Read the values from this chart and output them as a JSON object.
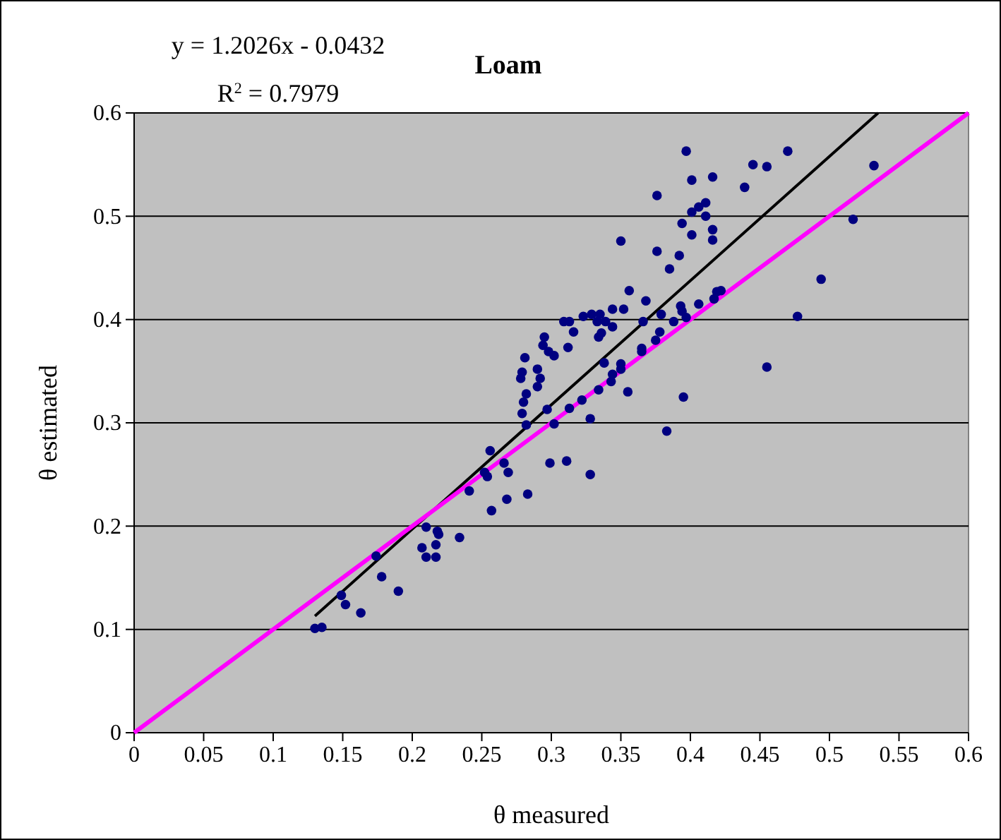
{
  "chart_data": {
    "type": "scatter",
    "title": "Loam",
    "xlabel": "θ  measured",
    "ylabel": "θ  estimated",
    "annotations": [
      "y = 1.2026x - 0.0432",
      "R$^{2}$ = 0.7979"
    ],
    "xlim": [
      0,
      0.6
    ],
    "xticks": [
      0,
      0.05,
      0.1,
      0.15,
      0.2,
      0.25,
      0.3,
      0.35,
      0.4,
      0.45,
      0.5,
      0.55,
      0.6
    ],
    "ylim": [
      0,
      0.6
    ],
    "yticks": [
      0,
      0.1,
      0.2,
      0.3,
      0.4,
      0.5,
      0.6
    ],
    "grid": "y",
    "series": [
      {
        "color": "#000080",
        "marker": "circle",
        "x": [
          0.13,
          0.135,
          0.149,
          0.152,
          0.163,
          0.174,
          0.178,
          0.19,
          0.207,
          0.21,
          0.21,
          0.217,
          0.217,
          0.218,
          0.219,
          0.234,
          0.241,
          0.252,
          0.254,
          0.256,
          0.257,
          0.266,
          0.268,
          0.269,
          0.278,
          0.279,
          0.279,
          0.28,
          0.281,
          0.282,
          0.282,
          0.283,
          0.29,
          0.29,
          0.292,
          0.294,
          0.295,
          0.297,
          0.298,
          0.299,
          0.302,
          0.302,
          0.309,
          0.311,
          0.312,
          0.313,
          0.313,
          0.316,
          0.322,
          0.323,
          0.328,
          0.328,
          0.329,
          0.333,
          0.334,
          0.334,
          0.335,
          0.336,
          0.338,
          0.339,
          0.343,
          0.344,
          0.344,
          0.344,
          0.35,
          0.35,
          0.35,
          0.352,
          0.355,
          0.356,
          0.365,
          0.365,
          0.366,
          0.368,
          0.375,
          0.376,
          0.376,
          0.378,
          0.379,
          0.383,
          0.385,
          0.388,
          0.392,
          0.393,
          0.394,
          0.394,
          0.395,
          0.397,
          0.397,
          0.401,
          0.401,
          0.401,
          0.406,
          0.406,
          0.411,
          0.411,
          0.416,
          0.416,
          0.416,
          0.417,
          0.419,
          0.422,
          0.439,
          0.445,
          0.455,
          0.455,
          0.47,
          0.477,
          0.494,
          0.517,
          0.532
        ],
        "values": [
          0.101,
          0.102,
          0.133,
          0.124,
          0.116,
          0.171,
          0.151,
          0.137,
          0.179,
          0.199,
          0.17,
          0.182,
          0.17,
          0.195,
          0.192,
          0.189,
          0.234,
          0.252,
          0.248,
          0.273,
          0.215,
          0.261,
          0.226,
          0.252,
          0.343,
          0.349,
          0.309,
          0.32,
          0.363,
          0.328,
          0.298,
          0.231,
          0.352,
          0.335,
          0.343,
          0.375,
          0.383,
          0.313,
          0.369,
          0.261,
          0.365,
          0.299,
          0.398,
          0.263,
          0.373,
          0.398,
          0.314,
          0.388,
          0.322,
          0.403,
          0.304,
          0.25,
          0.405,
          0.398,
          0.383,
          0.332,
          0.405,
          0.387,
          0.358,
          0.398,
          0.34,
          0.41,
          0.393,
          0.347,
          0.476,
          0.357,
          0.352,
          0.41,
          0.33,
          0.428,
          0.372,
          0.369,
          0.398,
          0.418,
          0.38,
          0.52,
          0.466,
          0.388,
          0.405,
          0.292,
          0.449,
          0.398,
          0.462,
          0.413,
          0.493,
          0.408,
          0.325,
          0.563,
          0.402,
          0.535,
          0.504,
          0.482,
          0.509,
          0.415,
          0.513,
          0.5,
          0.538,
          0.487,
          0.477,
          0.42,
          0.427,
          0.428,
          0.528,
          0.55,
          0.548,
          0.354,
          0.563,
          0.403,
          0.439,
          0.497,
          0.549
        ]
      },
      {
        "type": "line",
        "color": "#000000",
        "line_style": "solid",
        "x": [
          0.13,
          0.535
        ],
        "values": [
          0.113,
          0.6
        ]
      },
      {
        "type": "line",
        "color": "#ff00ff",
        "line_style": "solid",
        "x": [
          0,
          0.6
        ],
        "values": [
          0,
          0.6
        ]
      }
    ]
  }
}
